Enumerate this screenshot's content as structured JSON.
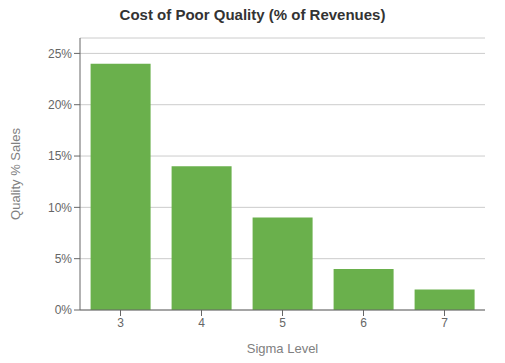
{
  "chart_data": {
    "type": "bar",
    "title": "Cost of Poor Quality (% of Revenues)",
    "xlabel": "Sigma Level",
    "ylabel": "Quality % Sales",
    "categories": [
      "3",
      "4",
      "5",
      "6",
      "7"
    ],
    "values": [
      0.24,
      0.14,
      0.09,
      0.04,
      0.02
    ],
    "color": "#6ab04c",
    "ylim": [
      0,
      0.265
    ],
    "yticks": [
      {
        "value": 0.0,
        "label": "0%"
      },
      {
        "value": 0.05,
        "label": "5%"
      },
      {
        "value": 0.1,
        "label": "10%"
      },
      {
        "value": 0.15,
        "label": "15%"
      },
      {
        "value": 0.2,
        "label": "20%"
      },
      {
        "value": 0.25,
        "label": "25%"
      }
    ],
    "grid": true
  }
}
